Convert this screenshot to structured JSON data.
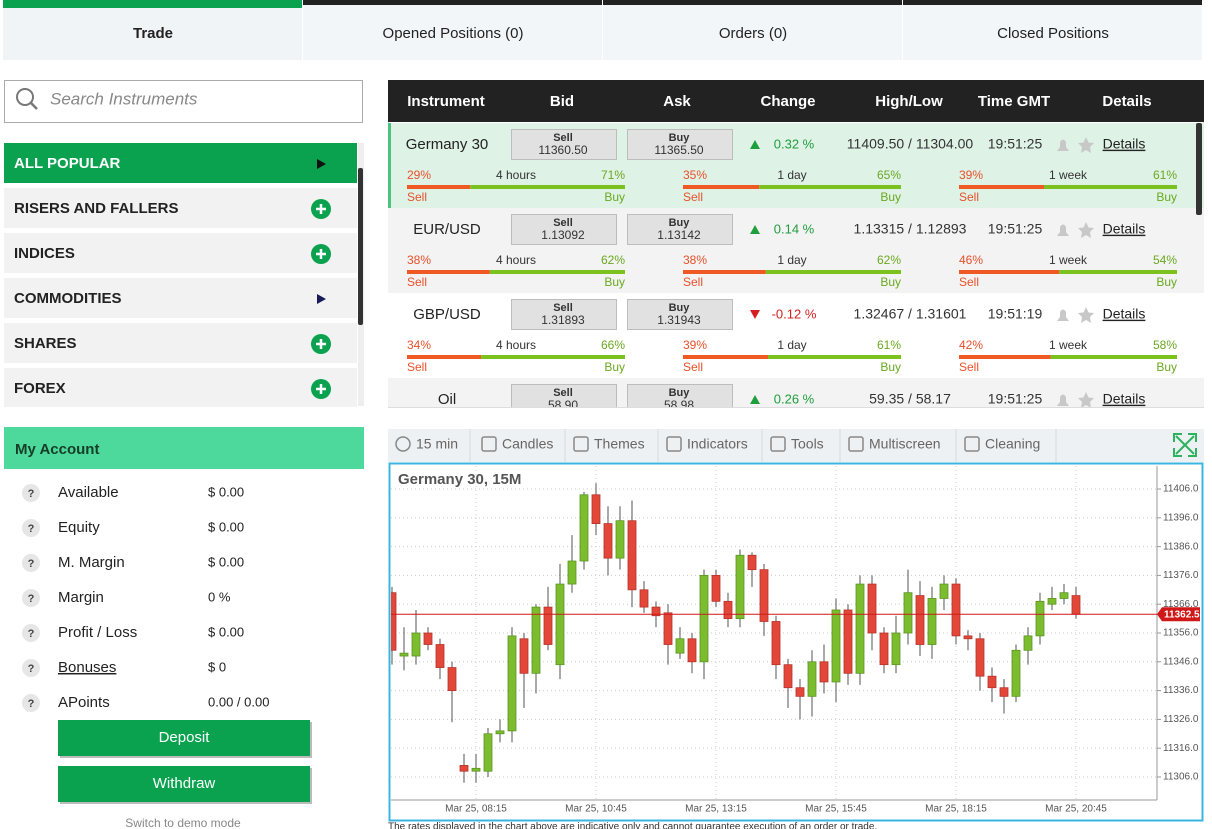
{
  "tabs": [
    "Trade",
    "Opened Positions (0)",
    "Orders (0)",
    "Closed Positions"
  ],
  "active_tab": 0,
  "search": {
    "placeholder": "Search Instruments"
  },
  "menu": [
    {
      "label": "ALL POPULAR",
      "icon": "arrow"
    },
    {
      "label": "RISERS AND FALLERS",
      "icon": "plus"
    },
    {
      "label": "INDICES",
      "icon": "plus"
    },
    {
      "label": "COMMODITIES",
      "icon": "arrow"
    },
    {
      "label": "SHARES",
      "icon": "plus"
    },
    {
      "label": "FOREX",
      "icon": "plus"
    }
  ],
  "active_menu": 0,
  "account": {
    "title": "My Account",
    "help": "?",
    "rows": [
      {
        "label": "Available",
        "value": "$ 0.00"
      },
      {
        "label": "Equity",
        "value": "$ 0.00"
      },
      {
        "label": "M. Margin",
        "value": "$ 0.00"
      },
      {
        "label": "Margin",
        "value": "0 %"
      },
      {
        "label": "Profit / Loss",
        "value": "$ 0.00"
      },
      {
        "label": "Bonuses",
        "value": "$ 0",
        "link": true
      },
      {
        "label": "APoints",
        "value": "0.00 / 0.00"
      }
    ],
    "deposit": "Deposit",
    "withdraw": "Withdraw",
    "demo": "Switch to demo mode"
  },
  "market": {
    "headers": [
      "Instrument",
      "Bid",
      "Ask",
      "Change",
      "High/Low",
      "Time GMT",
      "Details"
    ],
    "sell": "Sell",
    "buy": "Buy",
    "selected_row": 0,
    "rows": [
      {
        "instrument": "Germany 30",
        "bid": "11360.50",
        "ask": "11365.50",
        "change": "0.32 %",
        "direction": "up",
        "high_low": "11409.50 / 11304.00",
        "time": "19:51:25",
        "details": "Details",
        "sentiment": [
          {
            "sell": "29%",
            "period": "4 hours",
            "buy": "71%"
          },
          {
            "sell": "35%",
            "period": "1 day",
            "buy": "65%"
          },
          {
            "sell": "39%",
            "period": "1 week",
            "buy": "61%"
          }
        ]
      },
      {
        "instrument": "EUR/USD",
        "bid": "1.13092",
        "ask": "1.13142",
        "change": "0.14 %",
        "direction": "up",
        "high_low": "1.13315 / 1.12893",
        "time": "19:51:25",
        "details": "Details",
        "sentiment": [
          {
            "sell": "38%",
            "period": "4 hours",
            "buy": "62%"
          },
          {
            "sell": "38%",
            "period": "1 day",
            "buy": "62%"
          },
          {
            "sell": "46%",
            "period": "1 week",
            "buy": "54%"
          }
        ]
      },
      {
        "instrument": "GBP/USD",
        "bid": "1.31893",
        "ask": "1.31943",
        "change": "-0.12 %",
        "direction": "down",
        "high_low": "1.32467 / 1.31601",
        "time": "19:51:19",
        "details": "Details",
        "sentiment": [
          {
            "sell": "34%",
            "period": "4 hours",
            "buy": "66%"
          },
          {
            "sell": "39%",
            "period": "1 day",
            "buy": "61%"
          },
          {
            "sell": "42%",
            "period": "1 week",
            "buy": "58%"
          }
        ]
      },
      {
        "instrument": "Oil",
        "bid": "58.90",
        "ask": "58.98",
        "change": "0.26 %",
        "direction": "up",
        "high_low": "59.35 / 58.17",
        "time": "19:51:25",
        "details": "Details",
        "sentiment": []
      }
    ]
  },
  "toolbar": [
    "15 min",
    "Candles",
    "Themes",
    "Indicators",
    "Tools",
    "Multiscreen",
    "Cleaning"
  ],
  "chart_data": {
    "type": "candlestick",
    "title": "Germany 30, 15M",
    "x": [
      null,
      null,
      null,
      null,
      null,
      null,
      null,
      "Mar 25, 08:15",
      null,
      null,
      null,
      null,
      null,
      null,
      null,
      null,
      null,
      "Mar 25, 10:45",
      null,
      null,
      null,
      null,
      null,
      null,
      null,
      null,
      null,
      "Mar 25, 13:15",
      null,
      null,
      null,
      null,
      null,
      null,
      null,
      null,
      null,
      "Mar 25, 15:45",
      null,
      null,
      null,
      null,
      null,
      null,
      null,
      null,
      null,
      "Mar 25, 18:15",
      null,
      null,
      null,
      null,
      null,
      null,
      null,
      null,
      null,
      "Mar 25, 20:45"
    ],
    "open": [
      11370,
      11348,
      11348,
      11356,
      11352,
      11344,
      11310,
      11308,
      11308,
      11321,
      11322,
      11354,
      11342,
      11365,
      11345,
      11373,
      11381,
      11404,
      11394,
      11382,
      11395,
      11371,
      11365,
      11363,
      11349,
      11354,
      11346,
      11376,
      11367,
      11361,
      11383,
      11378,
      11360,
      11345,
      11337,
      11334,
      11346,
      11339,
      11364,
      11342,
      11373,
      11356,
      11345,
      11356,
      11369,
      11352,
      11368,
      11373,
      11355,
      11354,
      11341,
      11337,
      11334,
      11350,
      11355,
      11366,
      11368,
      11369
    ],
    "high": [
      11372,
      11358,
      11364,
      11358,
      11354,
      11346,
      11314,
      11314,
      11323,
      11326,
      11358,
      11356,
      11366,
      11372,
      11380,
      11390,
      11405,
      11408,
      11400,
      11400,
      11402,
      11374,
      11367,
      11366,
      11358,
      11356,
      11378,
      11378,
      11370,
      11385,
      11384,
      11380,
      11362,
      11347,
      11340,
      11350,
      11352,
      11368,
      11366,
      11376,
      11376,
      11358,
      11362,
      11378,
      11374,
      11372,
      11376,
      11375,
      11357,
      11356,
      11344,
      11340,
      11352,
      11358,
      11370,
      11372,
      11373,
      11372
    ],
    "low": [
      11345,
      11343,
      11345,
      11350,
      11340,
      11325,
      11304,
      11304,
      11306,
      11318,
      11318,
      11330,
      11335,
      11350,
      11340,
      11370,
      11378,
      11390,
      11376,
      11378,
      11365,
      11363,
      11358,
      11345,
      11347,
      11342,
      11340,
      11365,
      11358,
      11358,
      11372,
      11355,
      11340,
      11330,
      11326,
      11327,
      11335,
      11332,
      11338,
      11338,
      11350,
      11342,
      11342,
      11352,
      11348,
      11347,
      11364,
      11352,
      11350,
      11336,
      11332,
      11328,
      11332,
      11345,
      11352,
      11364,
      11366,
      11361
    ],
    "close": [
      11350,
      11349,
      11356,
      11352,
      11344,
      11336,
      11308,
      11309,
      11321,
      11322,
      11355,
      11342,
      11365,
      11352,
      11373,
      11381,
      11404,
      11394,
      11382,
      11395,
      11371,
      11365,
      11362,
      11352,
      11354,
      11346,
      11376,
      11367,
      11361,
      11383,
      11378,
      11360,
      11345,
      11337,
      11334,
      11346,
      11339,
      11364,
      11342,
      11373,
      11356,
      11345,
      11356,
      11370,
      11352,
      11368,
      11373,
      11355,
      11354,
      11341,
      11337,
      11334,
      11350,
      11355,
      11367,
      11368,
      11370,
      11362.5
    ],
    "ylim": [
      11298,
      11414
    ],
    "yticks": [
      {
        "value": 11306,
        "label": "11306.0"
      },
      {
        "value": 11316,
        "label": "11316.0"
      },
      {
        "value": 11326,
        "label": "11326.0"
      },
      {
        "value": 11336,
        "label": "11336.0"
      },
      {
        "value": 11346,
        "label": "11346.0"
      },
      {
        "value": 11356,
        "label": "11356.0"
      },
      {
        "value": 11366,
        "label": "11366.0"
      },
      {
        "value": 11376,
        "label": "11376.0"
      },
      {
        "value": 11386,
        "label": "11386.0"
      },
      {
        "value": 11396,
        "label": "11396.0"
      },
      {
        "value": 11406,
        "label": "11406.0"
      }
    ],
    "last": {
      "value": 11362.5,
      "label": "11362.5"
    },
    "grid": true,
    "up_color": "#7cbd2f",
    "down_color": "#e2473a",
    "last_color": "#d01818"
  },
  "disclaimer": "The rates displayed in the chart above are indicative only and cannot guarantee execution of an order or trade."
}
